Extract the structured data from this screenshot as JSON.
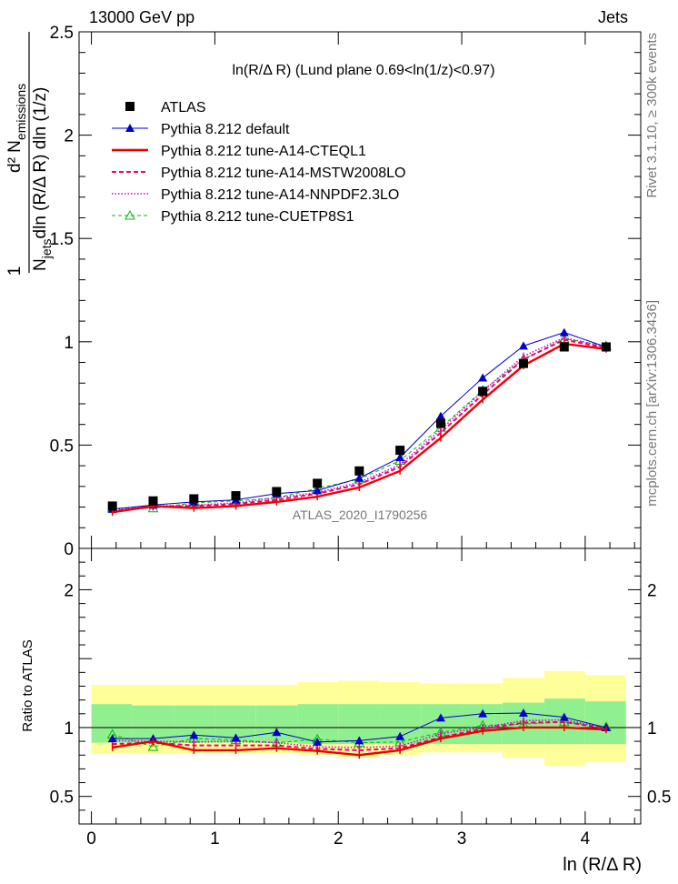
{
  "header": {
    "left": "13000 GeV pp",
    "right": "Jets"
  },
  "side_labels": {
    "rivet": "Rivet 3.1.10, ≥ 300k events",
    "mcplots": "mcplots.cern.ch [arXiv:1306.3436]"
  },
  "colors": {
    "atlas": "#000000",
    "default": "#0000cc",
    "cteql1": "#ee0000",
    "mstw": "#ee0077",
    "nnpdf": "#cc00cc",
    "cuetp": "#00bb00",
    "band_inner": "#90f090",
    "band_outer": "#ffff99"
  },
  "chart_data": [
    {
      "type": "line",
      "panel": "main",
      "title": "ln(R/Δ R) (Lund plane 0.69<ln(1/z)<0.97)",
      "watermark": "ATLAS_2020_I1790256",
      "xlabel": "ln (R/Δ R)",
      "ylabel": {
        "numerator": "d² N",
        "numerator_sub": "emissions",
        "denominator_pre": "N",
        "denominator_sub": "jets",
        "denominator_post": "dln (R/Δ R) dln (1/z)",
        "fraction_num": "1"
      },
      "xlim": [
        -0.1,
        4.45
      ],
      "ylim": [
        0,
        2.5
      ],
      "xticks": [
        0,
        1,
        2,
        3,
        4
      ],
      "yticks": [
        0,
        0.5,
        1,
        1.5,
        2,
        2.5
      ],
      "ytick_labels": [
        "0",
        "0.5",
        "1",
        "1.5",
        "2",
        "2.5"
      ],
      "x": [
        0.17,
        0.5,
        0.83,
        1.17,
        1.5,
        1.83,
        2.17,
        2.5,
        2.83,
        3.17,
        3.5,
        3.83,
        4.17
      ],
      "series": [
        {
          "key": "atlas",
          "name": "ATLAS",
          "style": "marker-square",
          "values": [
            0.205,
            0.23,
            0.24,
            0.255,
            0.275,
            0.315,
            0.375,
            0.475,
            0.605,
            0.76,
            0.895,
            0.975,
            0.975
          ]
        },
        {
          "key": "default",
          "name": "Pythia 8.212 default",
          "style": "line-triangle",
          "values": [
            0.19,
            0.21,
            0.225,
            0.235,
            0.265,
            0.28,
            0.34,
            0.44,
            0.64,
            0.825,
            0.98,
            1.045,
            0.975
          ]
        },
        {
          "key": "cteql1",
          "name": "Pythia 8.212 tune-A14-CTEQL1",
          "style": "thick-line",
          "values": [
            0.175,
            0.205,
            0.195,
            0.205,
            0.225,
            0.25,
            0.295,
            0.375,
            0.535,
            0.72,
            0.885,
            0.99,
            0.965
          ]
        },
        {
          "key": "mstw",
          "name": "Pythia 8.212 tune-A14-MSTW2008LO",
          "style": "dashed",
          "values": [
            0.18,
            0.2,
            0.205,
            0.215,
            0.235,
            0.265,
            0.31,
            0.395,
            0.56,
            0.745,
            0.915,
            1.01,
            0.97
          ]
        },
        {
          "key": "nnpdf",
          "name": "Pythia 8.212 tune-A14-NNPDF2.3LO",
          "style": "dotted",
          "values": [
            0.185,
            0.205,
            0.21,
            0.22,
            0.245,
            0.27,
            0.32,
            0.405,
            0.575,
            0.76,
            0.93,
            1.02,
            0.975
          ]
        },
        {
          "key": "cuetp",
          "name": "Pythia 8.212 tune-CUETP8S1",
          "style": "dashed-open-triangle",
          "values": [
            0.195,
            0.195,
            0.22,
            0.23,
            0.245,
            0.29,
            0.335,
            0.425,
            0.585,
            0.765,
            0.915,
            1.015,
            0.98
          ]
        }
      ]
    },
    {
      "type": "line",
      "panel": "ratio",
      "ylabel": "Ratio to ATLAS",
      "xlabel": "ln (R/Δ R)",
      "xlim": [
        -0.1,
        4.45
      ],
      "ylim": [
        0.3,
        2.3
      ],
      "yticks": [
        0.5,
        1,
        2
      ],
      "ytick_labels": [
        "0.5",
        "1",
        "2"
      ],
      "xticks": [
        0,
        1,
        2,
        3,
        4
      ],
      "xtick_labels": [
        "0",
        "1",
        "2",
        "3",
        "4"
      ],
      "bins": [
        0.0,
        0.33,
        0.67,
        1.0,
        1.33,
        1.67,
        2.0,
        2.33,
        2.67,
        3.0,
        3.33,
        3.67,
        4.0,
        4.33
      ],
      "band_inner": [
        [
          0.89,
          1.17
        ],
        [
          0.89,
          1.16
        ],
        [
          0.89,
          1.16
        ],
        [
          0.89,
          1.16
        ],
        [
          0.89,
          1.16
        ],
        [
          0.88,
          1.17
        ],
        [
          0.88,
          1.17
        ],
        [
          0.88,
          1.17
        ],
        [
          0.88,
          1.17
        ],
        [
          0.88,
          1.17
        ],
        [
          0.88,
          1.18
        ],
        [
          0.88,
          1.21
        ],
        [
          0.88,
          1.19
        ]
      ],
      "band_outer": [
        [
          0.81,
          1.31
        ],
        [
          0.81,
          1.31
        ],
        [
          0.81,
          1.31
        ],
        [
          0.81,
          1.31
        ],
        [
          0.81,
          1.31
        ],
        [
          0.8,
          1.33
        ],
        [
          0.78,
          1.34
        ],
        [
          0.8,
          1.33
        ],
        [
          0.82,
          1.32
        ],
        [
          0.82,
          1.32
        ],
        [
          0.78,
          1.36
        ],
        [
          0.72,
          1.41
        ],
        [
          0.75,
          1.38
        ]
      ],
      "x": [
        0.17,
        0.5,
        0.83,
        1.17,
        1.5,
        1.83,
        2.17,
        2.5,
        2.83,
        3.17,
        3.5,
        3.83,
        4.17
      ],
      "series": [
        {
          "key": "default",
          "name": "Pythia 8.212 default",
          "values": [
            0.92,
            0.92,
            0.945,
            0.925,
            0.965,
            0.895,
            0.905,
            0.935,
            1.07,
            1.1,
            1.105,
            1.075,
            1.0
          ]
        },
        {
          "key": "cteql1",
          "name": "Pythia 8.212 tune-A14-CTEQL1",
          "values": [
            0.855,
            0.9,
            0.835,
            0.835,
            0.85,
            0.83,
            0.8,
            0.835,
            0.92,
            0.975,
            1.0,
            1.0,
            0.985
          ]
        },
        {
          "key": "mstw",
          "name": "Pythia 8.212 tune-A14-MSTW2008LO",
          "values": [
            0.88,
            0.89,
            0.87,
            0.87,
            0.87,
            0.845,
            0.835,
            0.85,
            0.93,
            0.99,
            1.035,
            1.04,
            0.995
          ]
        },
        {
          "key": "nnpdf",
          "name": "Pythia 8.212 tune-A14-NNPDF2.3LO",
          "values": [
            0.905,
            0.9,
            0.895,
            0.9,
            0.89,
            0.86,
            0.855,
            0.865,
            0.955,
            1.0,
            1.05,
            1.055,
            1.0
          ]
        },
        {
          "key": "cuetp",
          "name": "Pythia 8.212 tune-CUETP8S1",
          "values": [
            0.95,
            0.86,
            0.92,
            0.91,
            0.89,
            0.915,
            0.89,
            0.895,
            0.965,
            1.015,
            1.025,
            1.04,
            1.005
          ]
        }
      ]
    }
  ]
}
